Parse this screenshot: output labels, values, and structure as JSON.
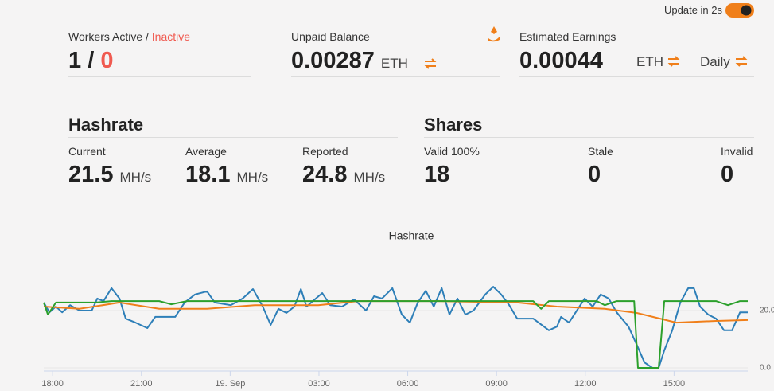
{
  "toggle": {
    "label": "Update in 2s"
  },
  "workers": {
    "label_active": "Workers Active",
    "separator": "/",
    "label_inactive": "Inactive",
    "active": "1",
    "inactive": "0"
  },
  "unpaid": {
    "label": "Unpaid Balance",
    "value": "0.00287",
    "unit": "ETH"
  },
  "estimated": {
    "label": "Estimated Earnings",
    "value": "0.00044",
    "unit": "ETH",
    "period": "Daily"
  },
  "hashrate": {
    "title": "Hashrate",
    "items": [
      {
        "label": "Current",
        "value": "21.5",
        "unit": "MH/s"
      },
      {
        "label": "Average",
        "value": "18.1",
        "unit": "MH/s"
      },
      {
        "label": "Reported",
        "value": "24.8",
        "unit": "MH/s"
      }
    ]
  },
  "shares": {
    "title": "Shares",
    "items": [
      {
        "label": "Valid 100%",
        "value": "18"
      },
      {
        "label": "Stale",
        "value": "0"
      },
      {
        "label": "Invalid",
        "value": "0"
      }
    ]
  },
  "chart_data": {
    "type": "line",
    "title": "Hashrate",
    "xlim": [
      17.7,
      41.49
    ],
    "xticks": [
      {
        "value": 18,
        "label": "18:00"
      },
      {
        "value": 21,
        "label": "21:00"
      },
      {
        "value": 24,
        "label": "19. Sep"
      },
      {
        "value": 27,
        "label": "03:00"
      },
      {
        "value": 30,
        "label": "06:00"
      },
      {
        "value": 33,
        "label": "09:00"
      },
      {
        "value": 36,
        "label": "12:00"
      },
      {
        "value": 39,
        "label": "15:00"
      }
    ],
    "ylim": [
      0,
      35
    ],
    "yticks": [
      {
        "value": 20,
        "label": "20.0"
      },
      {
        "value": 0,
        "label": "0.0"
      }
    ],
    "grid": true,
    "series": [
      {
        "color": "#2e7fb8",
        "x": [
          17.7,
          17.89,
          18.11,
          18.32,
          18.59,
          18.91,
          19.32,
          19.51,
          19.72,
          19.99,
          20.26,
          20.47,
          20.8,
          21.2,
          21.47,
          22.14,
          22.46,
          22.81,
          23.22,
          23.48,
          24.02,
          24.42,
          24.77,
          25.1,
          25.37,
          25.63,
          25.9,
          26.17,
          26.39,
          26.58,
          27.11,
          27.38,
          27.78,
          28.19,
          28.59,
          28.86,
          29.13,
          29.48,
          29.8,
          30.07,
          30.34,
          30.61,
          30.88,
          31.15,
          31.41,
          31.68,
          31.95,
          32.22,
          32.62,
          32.89,
          33.16,
          33.43,
          33.7,
          34.24,
          34.77,
          35.04,
          35.18,
          35.45,
          35.98,
          36.25,
          36.52,
          36.79,
          37.06,
          37.46,
          37.73,
          38.0,
          38.27,
          38.48,
          38.67,
          38.94,
          39.21,
          39.48,
          39.67,
          39.88,
          40.15,
          40.42,
          40.69,
          40.96,
          41.23,
          41.49
        ],
        "values": [
          22.8,
          19.4,
          21.4,
          19.4,
          21.9,
          20.0,
          20.0,
          24.2,
          23.3,
          27.8,
          24.2,
          17.2,
          15.8,
          13.9,
          17.8,
          17.8,
          22.8,
          25.6,
          26.7,
          22.8,
          21.9,
          24.2,
          27.5,
          21.4,
          15.0,
          20.6,
          19.2,
          21.4,
          27.5,
          21.4,
          26.1,
          21.9,
          21.4,
          23.9,
          20.0,
          25.0,
          24.2,
          27.8,
          18.6,
          15.8,
          22.8,
          26.9,
          21.4,
          27.8,
          18.6,
          24.2,
          18.6,
          20.0,
          25.6,
          28.3,
          25.6,
          21.9,
          17.2,
          17.2,
          13.1,
          14.4,
          17.8,
          15.8,
          24.2,
          21.4,
          25.6,
          24.2,
          19.4,
          14.4,
          8.3,
          1.9,
          0,
          0,
          6.1,
          13.1,
          22.8,
          27.8,
          27.8,
          21.4,
          18.6,
          17.2,
          13.1,
          13.1,
          19.4,
          19.4
        ]
      },
      {
        "color": "#f07f1a",
        "x": [
          17.7,
          18.91,
          20.26,
          21.6,
          23.22,
          24.83,
          26.98,
          28.32,
          31.01,
          33.7,
          35.04,
          36.66,
          37.73,
          39.08,
          40.42,
          41.49
        ],
        "values": [
          21.4,
          20.6,
          22.8,
          20.6,
          20.6,
          21.9,
          21.9,
          23.3,
          23.3,
          22.8,
          21.4,
          20.6,
          19.2,
          15.8,
          16.4,
          16.7
        ]
      },
      {
        "color": "#2ca02c",
        "x": [
          17.7,
          17.84,
          18.11,
          19.45,
          19.99,
          21.6,
          22.01,
          22.54,
          34.24,
          34.51,
          34.77,
          36.39,
          36.66,
          37.06,
          37.65,
          37.78,
          38.48,
          38.67,
          40.42,
          40.82,
          41.23,
          41.49
        ],
        "values": [
          22.8,
          18.6,
          22.8,
          22.8,
          23.3,
          23.3,
          22.2,
          23.3,
          23.3,
          20.6,
          23.3,
          23.3,
          21.9,
          23.3,
          23.3,
          0,
          0,
          23.3,
          23.3,
          21.9,
          23.3,
          23.3
        ]
      }
    ]
  }
}
